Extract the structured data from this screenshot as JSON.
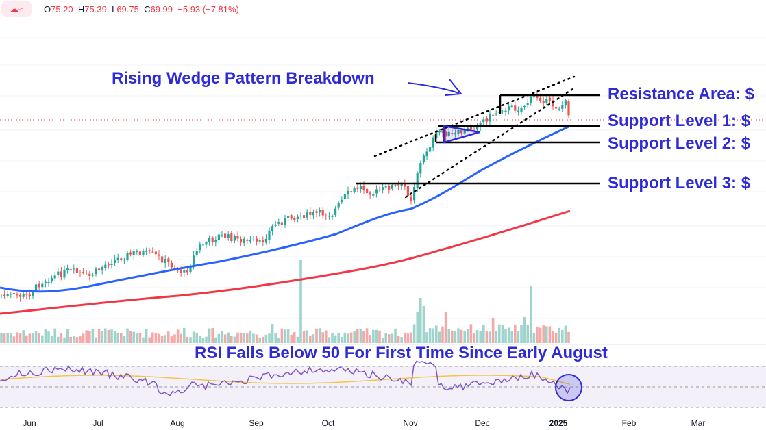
{
  "header": {
    "ohlc": [
      {
        "key": "O",
        "value": "75.20"
      },
      {
        "key": "H",
        "value": "75.39"
      },
      {
        "key": "L",
        "value": "69.75"
      },
      {
        "key": "C",
        "value": "69.99"
      }
    ],
    "change": "−5.93 (−7.81%)"
  },
  "annotations": {
    "wedge": "Rising Wedge Pattern Breakdown",
    "rsi": "RSI Falls Below 50 For First Time Since Early August",
    "levels": [
      {
        "label": "Resistance Area: $"
      },
      {
        "label": "Support Level 1: $"
      },
      {
        "label": "Support Level 2: $"
      },
      {
        "label": "Support Level 3: $"
      }
    ]
  },
  "chart_data": {
    "type": "candlestick",
    "x_axis_labels": [
      "Jun",
      "Jul",
      "Aug",
      "Sep",
      "Oct",
      "Nov",
      "Dec",
      "2025",
      "Feb",
      "Mar"
    ],
    "series": [
      {
        "name": "",
        "color": "#2962ff"
      },
      {
        "name": "",
        "color": "#f23645"
      }
    ],
    "last_candle": {
      "open": 75.2,
      "high": 75.39,
      "low": 69.75,
      "close": 69.99,
      "change": -5.93,
      "change_pct": -7.81
    },
    "rsi_marker": "circle at latest RSI reading",
    "colors": {
      "up": "#26a69a",
      "down": "#ef5350",
      "ma_fast": "#2962ff",
      "ma_slow": "#f23645",
      "annotation": "#2e2bd6",
      "rsi": "#7e57c2",
      "rsi_signal": "#f5c542"
    }
  }
}
